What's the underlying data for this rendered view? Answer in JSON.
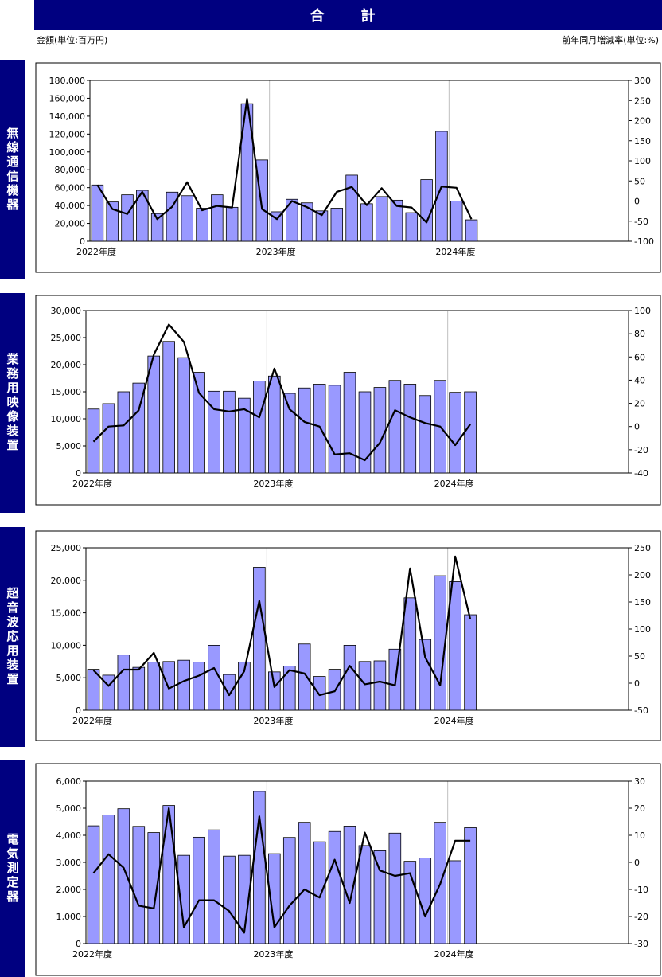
{
  "page": {
    "title": "合　計",
    "left_unit": "金額(単位:百万円)",
    "right_unit": "前年同月増減率(単位:%)"
  },
  "colors": {
    "banner": "#000080",
    "bar": "#9999FF",
    "line": "#000000"
  },
  "chart_data": [
    {
      "type": "bar+line",
      "section_label": "無線通信機器",
      "year_labels": [
        "2022年度",
        "2023年度",
        "2024年度"
      ],
      "ylim": [
        0,
        180000
      ],
      "y_ticks": [
        "0",
        "20,000",
        "40,000",
        "60,000",
        "80,000",
        "100,000",
        "120,000",
        "140,000",
        "160,000",
        "180,000"
      ],
      "y2lim": [
        -100,
        300
      ],
      "y2_ticks": [
        "-100",
        "-50",
        "0",
        "50",
        "100",
        "150",
        "200",
        "250",
        "300"
      ],
      "bars": [
        63000,
        44000,
        52000,
        57000,
        31000,
        55000,
        51000,
        37000,
        52000,
        38000,
        154000,
        91000,
        33000,
        47000,
        43000,
        34000,
        37000,
        74000,
        42000,
        50000,
        46000,
        32000,
        69000,
        123000,
        45000,
        24000
      ],
      "line": [
        40,
        -20,
        -32,
        23,
        -45,
        -14,
        47,
        -23,
        -12,
        -16,
        254,
        -20,
        -45,
        0,
        -15,
        -35,
        23,
        35,
        -10,
        32,
        -12,
        -16,
        -53,
        36,
        33,
        -45
      ]
    },
    {
      "type": "bar+line",
      "section_label": "業務用映像装置",
      "year_labels": [
        "2022年度",
        "2023年度",
        "2024年度"
      ],
      "ylim": [
        0,
        30000
      ],
      "y_ticks": [
        "0",
        "5,000",
        "10,000",
        "15,000",
        "20,000",
        "25,000",
        "30,000"
      ],
      "y2lim": [
        -40,
        100
      ],
      "y2_ticks": [
        "-40",
        "-20",
        "0",
        "20",
        "40",
        "60",
        "80",
        "100"
      ],
      "bars": [
        11800,
        12800,
        15000,
        16600,
        21600,
        24300,
        21300,
        18600,
        15100,
        15100,
        13800,
        17000,
        17900,
        14700,
        15700,
        16400,
        16200,
        18600,
        15000,
        15800,
        17100,
        16400,
        14300,
        17100,
        14900,
        15000
      ],
      "line": [
        -13,
        0,
        1,
        14,
        62,
        88,
        73,
        29,
        15,
        13,
        15,
        8,
        50,
        15,
        4,
        0,
        -24,
        -23,
        -29,
        -14,
        14,
        8,
        3,
        0,
        -16,
        2
      ]
    },
    {
      "type": "bar+line",
      "section_label": "超音波応用装置",
      "year_labels": [
        "2022年度",
        "2023年度",
        "2024年度"
      ],
      "ylim": [
        0,
        25000
      ],
      "y_ticks": [
        "0",
        "5,000",
        "10,000",
        "15,000",
        "20,000",
        "25,000"
      ],
      "y2lim": [
        -50,
        250
      ],
      "y2_ticks": [
        "-50",
        "0",
        "50",
        "100",
        "150",
        "200",
        "250"
      ],
      "bars": [
        6300,
        5400,
        8500,
        6600,
        7400,
        7500,
        7700,
        7400,
        10000,
        5500,
        7400,
        22000,
        5900,
        6800,
        10200,
        5200,
        6300,
        10000,
        7500,
        7600,
        9400,
        17300,
        10900,
        20700,
        19800,
        14700
      ],
      "line": [
        24,
        -5,
        25,
        25,
        56,
        -10,
        4,
        14,
        28,
        -22,
        22,
        152,
        -7,
        24,
        18,
        -22,
        -15,
        32,
        -2,
        3,
        -4,
        212,
        48,
        -4,
        234,
        118
      ]
    },
    {
      "type": "bar+line",
      "section_label": "電気測定器",
      "year_labels": [
        "2022年度",
        "2023年度",
        "2024年度"
      ],
      "ylim": [
        0,
        6000
      ],
      "y_ticks": [
        "0",
        "1,000",
        "2,000",
        "3,000",
        "4,000",
        "5,000",
        "6,000"
      ],
      "y2lim": [
        -30,
        30
      ],
      "y2_ticks": [
        "-30",
        "-20",
        "-10",
        "0",
        "10",
        "20",
        "30"
      ],
      "bars": [
        4350,
        4750,
        4980,
        4330,
        4100,
        5100,
        3260,
        3930,
        4200,
        3230,
        3260,
        5620,
        3320,
        3920,
        4480,
        3760,
        4140,
        4340,
        3620,
        3430,
        4080,
        3040,
        3160,
        4480,
        3060,
        4280
      ],
      "line": [
        -4,
        3,
        -2,
        -16,
        -17,
        20,
        -24,
        -14,
        -14,
        -18,
        -26,
        17,
        -24,
        -16,
        -10,
        -13,
        1,
        -15,
        11,
        -3,
        -5,
        -4,
        -20,
        -8,
        8,
        8
      ]
    }
  ]
}
